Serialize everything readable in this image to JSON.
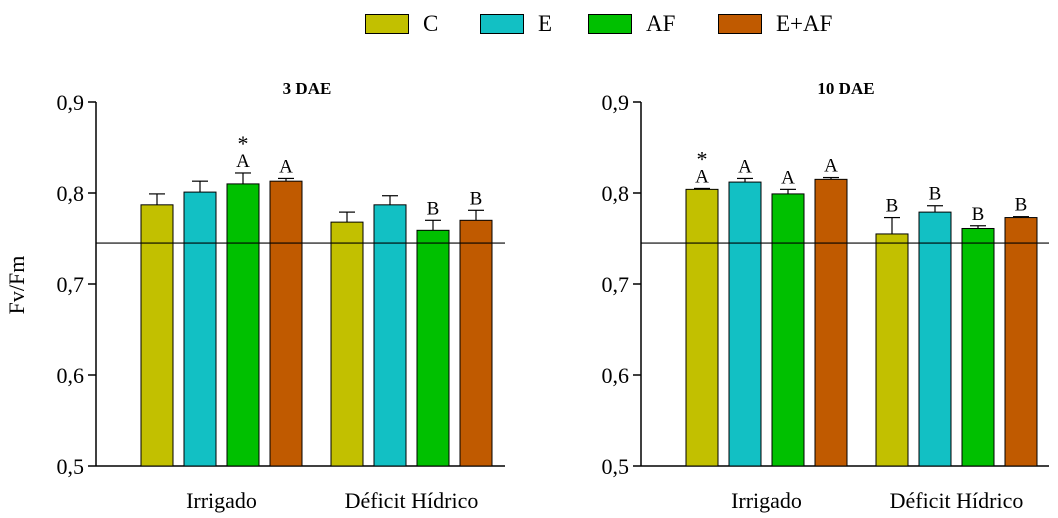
{
  "chart_data": {
    "type": "bar",
    "ylabel": "Fv/Fm",
    "ylim": [
      0.5,
      0.9
    ],
    "yticks": [
      "0,5",
      "0,6",
      "0,7",
      "0,8",
      "0,9"
    ],
    "reference_line": 0.745,
    "legend": {
      "position": "top-center",
      "entries": [
        {
          "name": "C",
          "color": "#C2C000"
        },
        {
          "name": "E",
          "color": "#12C0C4"
        },
        {
          "name": "AF",
          "color": "#00C000"
        },
        {
          "name": "E+AF",
          "color": "#C05A00"
        }
      ]
    },
    "panels": [
      {
        "title": "3 DAE",
        "categories": [
          "Irrigado",
          "Déficit Hídrico"
        ],
        "series": [
          {
            "name": "C",
            "color": "#C2C000",
            "values": [
              0.787,
              0.768
            ],
            "errors": [
              0.012,
              0.011
            ],
            "letters": [
              "",
              ""
            ],
            "stars": [
              "",
              ""
            ]
          },
          {
            "name": "E",
            "color": "#12C0C4",
            "values": [
              0.801,
              0.787
            ],
            "errors": [
              0.012,
              0.01
            ],
            "letters": [
              "",
              ""
            ],
            "stars": [
              "",
              ""
            ]
          },
          {
            "name": "AF",
            "color": "#00C000",
            "values": [
              0.81,
              0.759
            ],
            "errors": [
              0.012,
              0.011
            ],
            "letters": [
              "A",
              "B"
            ],
            "stars": [
              "*",
              ""
            ]
          },
          {
            "name": "E+AF",
            "color": "#C05A00",
            "values": [
              0.813,
              0.77
            ],
            "errors": [
              0.003,
              0.011
            ],
            "letters": [
              "A",
              "B"
            ],
            "stars": [
              "",
              ""
            ]
          }
        ]
      },
      {
        "title": "10 DAE",
        "categories": [
          "Irrigado",
          "Déficit Hídrico"
        ],
        "series": [
          {
            "name": "C",
            "color": "#C2C000",
            "values": [
              0.804,
              0.755
            ],
            "errors": [
              0.001,
              0.018
            ],
            "letters": [
              "A",
              "B"
            ],
            "stars": [
              "*",
              ""
            ]
          },
          {
            "name": "E",
            "color": "#12C0C4",
            "values": [
              0.812,
              0.779
            ],
            "errors": [
              0.004,
              0.007
            ],
            "letters": [
              "A",
              "B"
            ],
            "stars": [
              "",
              ""
            ]
          },
          {
            "name": "AF",
            "color": "#00C000",
            "values": [
              0.799,
              0.761
            ],
            "errors": [
              0.005,
              0.003
            ],
            "letters": [
              "A",
              "B"
            ],
            "stars": [
              "",
              ""
            ]
          },
          {
            "name": "E+AF",
            "color": "#C05A00",
            "values": [
              0.815,
              0.773
            ],
            "errors": [
              0.002,
              0.001
            ],
            "letters": [
              "A",
              "B"
            ],
            "stars": [
              "",
              ""
            ]
          }
        ]
      }
    ]
  }
}
